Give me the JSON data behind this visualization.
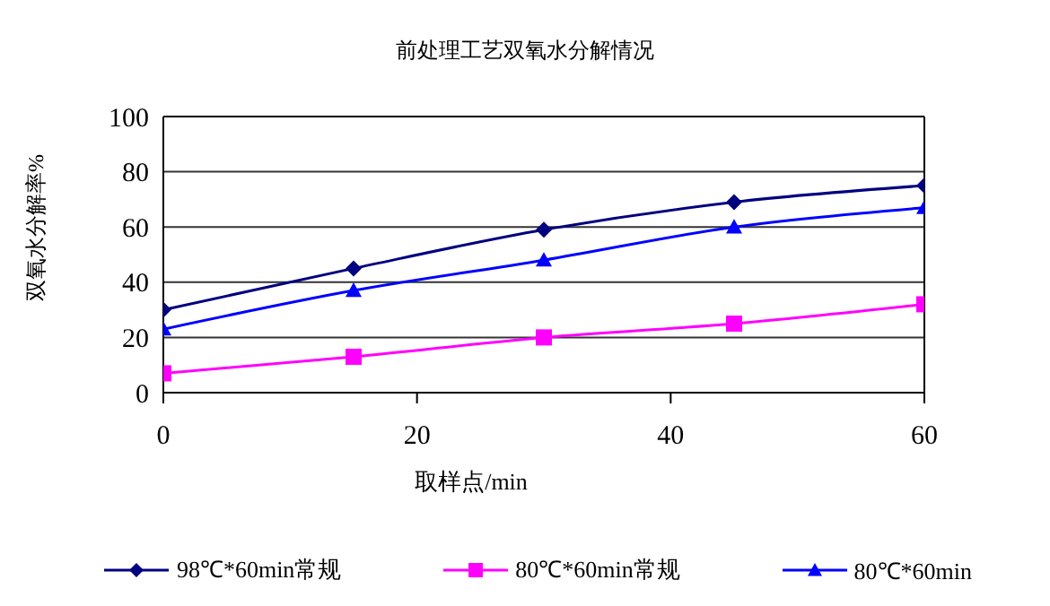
{
  "chart_data": {
    "type": "line",
    "title": "前处理工艺双氧水分解情况",
    "xlabel": "取样点/min",
    "ylabel": "双氧水分解率%",
    "x": [
      0,
      15,
      30,
      45,
      60
    ],
    "series": [
      {
        "name": "98℃*60min常规",
        "color": "#000080",
        "marker": "diamond",
        "values": [
          30,
          45,
          59,
          69,
          75
        ]
      },
      {
        "name": "80℃*60min常规",
        "color": "#ff00ff",
        "marker": "square",
        "values": [
          7,
          13,
          20,
          25,
          32
        ]
      },
      {
        "name": "80℃*60min",
        "color": "#0000ff",
        "marker": "triangle",
        "values": [
          23,
          37,
          48,
          60,
          67
        ]
      }
    ],
    "xlim": [
      0,
      60
    ],
    "xticks": [
      0,
      20,
      40,
      60
    ],
    "ylim": [
      0,
      100
    ],
    "yticks": [
      0,
      20,
      40,
      60,
      80,
      100
    ],
    "grid": "y",
    "legend": "bottom",
    "line_style": "solid"
  }
}
